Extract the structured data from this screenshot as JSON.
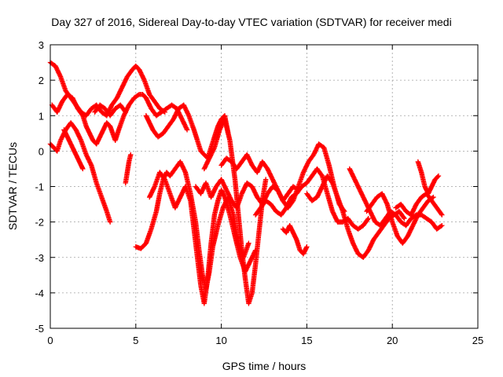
{
  "chart_data": {
    "type": "scatter",
    "title": "Day 327 of 2016, Sidereal Day-to-day VTEC variation (SDTVAR) for receiver medi",
    "xlabel": "GPS time / hours",
    "ylabel": "SDTVAR / TECUs",
    "xlim": [
      0,
      25
    ],
    "ylim": [
      -5,
      3
    ],
    "x_ticks": [
      "0",
      "5",
      "10",
      "15",
      "20",
      "25"
    ],
    "y_ticks": [
      "-5",
      "-4",
      "-3",
      "-2",
      "-1",
      "0",
      "1",
      "2",
      "3"
    ],
    "grid": true,
    "marker": "+",
    "color": "#ff0000",
    "series": [
      {
        "x": [
          0.0,
          0.3,
          0.6,
          0.9,
          1.2,
          1.5,
          1.8,
          2.1,
          2.4,
          2.7,
          3.0,
          3.3,
          3.6,
          3.9,
          4.2,
          4.5,
          4.8,
          5.0,
          5.2,
          5.5,
          5.8,
          6.1,
          6.4,
          6.7
        ],
        "y": [
          2.5,
          2.4,
          2.1,
          1.7,
          1.5,
          1.3,
          1.1,
          1.0,
          1.2,
          1.3,
          1.1,
          1.0,
          1.3,
          1.5,
          1.8,
          2.1,
          2.3,
          2.4,
          2.3,
          2.0,
          1.6,
          1.4,
          1.2,
          1.1
        ]
      },
      {
        "x": [
          0.0,
          0.2,
          0.4,
          0.6,
          0.9,
          1.2,
          1.5,
          1.8,
          2.1,
          2.4,
          2.7,
          3.0,
          3.3,
          3.5
        ],
        "y": [
          0.2,
          0.1,
          0.0,
          0.3,
          0.6,
          0.8,
          0.6,
          0.3,
          -0.1,
          -0.4,
          -0.9,
          -1.3,
          -1.7,
          -2.0
        ]
      },
      {
        "x": [
          0.1,
          0.4,
          0.7,
          1.0,
          1.3,
          1.6,
          1.9,
          2.1,
          2.3,
          2.5,
          2.7,
          2.9,
          3.1,
          3.3,
          3.5,
          3.8,
          4.0,
          4.3,
          4.6,
          4.9,
          5.2,
          5.4,
          5.6,
          5.9,
          6.2,
          6.5,
          6.8,
          7.1,
          7.4,
          7.7,
          8.0
        ],
        "y": [
          1.3,
          1.1,
          1.4,
          1.6,
          1.5,
          1.2,
          1.0,
          0.7,
          0.5,
          0.3,
          0.2,
          0.4,
          0.6,
          0.8,
          0.7,
          0.3,
          0.6,
          1.0,
          1.3,
          1.5,
          1.6,
          1.6,
          1.5,
          1.2,
          1.0,
          1.1,
          1.2,
          1.3,
          1.2,
          0.9,
          0.6
        ]
      },
      {
        "x": [
          0.8,
          1.0,
          1.2,
          1.4,
          1.6,
          1.8,
          1.9
        ],
        "y": [
          0.6,
          0.4,
          0.2,
          0.0,
          -0.2,
          -0.4,
          -0.5
        ]
      },
      {
        "x": [
          2.6,
          2.9,
          3.2,
          3.5,
          3.8,
          4.1,
          4.4
        ],
        "y": [
          1.1,
          1.3,
          1.2,
          1.0,
          1.2,
          1.3,
          1.1
        ]
      },
      {
        "x": [
          4.4,
          4.5,
          4.6,
          4.7
        ],
        "y": [
          -0.9,
          -0.6,
          -0.3,
          -0.1
        ]
      },
      {
        "x": [
          5.0,
          5.3,
          5.6,
          5.9,
          6.2,
          6.4,
          6.6,
          6.8,
          7.0,
          7.3,
          7.6,
          7.9,
          8.2,
          8.5,
          8.7,
          8.9,
          9.1,
          9.3,
          9.5,
          9.8,
          10.1,
          10.4,
          10.7,
          11.0,
          11.3,
          11.6
        ],
        "y": [
          -2.7,
          -2.75,
          -2.6,
          -2.2,
          -1.7,
          -1.2,
          -0.8,
          -0.6,
          -0.7,
          -0.5,
          -0.3,
          -0.6,
          -1.2,
          -2.0,
          -2.8,
          -3.5,
          -3.9,
          -3.4,
          -2.7,
          -2.1,
          -1.6,
          -1.3,
          -1.8,
          -2.6,
          -3.0,
          -2.6
        ]
      },
      {
        "x": [
          5.6,
          5.8,
          6.0,
          6.3,
          6.6,
          6.9,
          7.2,
          7.5,
          7.8,
          8.1,
          8.4,
          8.6,
          8.8,
          9.0,
          9.2,
          9.4,
          9.6,
          9.8,
          10.0,
          10.2,
          10.4
        ],
        "y": [
          1.0,
          0.8,
          0.6,
          0.4,
          0.5,
          0.7,
          0.9,
          1.2,
          1.3,
          1.0,
          0.6,
          0.3,
          0.0,
          -0.1,
          -0.2,
          0.1,
          0.4,
          0.7,
          0.9,
          1.0,
          0.5
        ]
      },
      {
        "x": [
          5.8,
          6.1,
          6.4,
          6.7,
          7.0,
          7.3,
          7.6,
          7.9,
          8.2,
          8.4,
          8.6,
          8.8,
          9.0,
          9.2,
          9.4,
          9.6,
          9.8,
          10.0,
          10.2,
          10.5,
          10.8,
          11.1,
          11.4,
          11.7,
          12.0
        ],
        "y": [
          -1.3,
          -1.0,
          -0.6,
          -0.8,
          -1.2,
          -1.6,
          -1.3,
          -1.0,
          -1.4,
          -2.2,
          -3.0,
          -3.8,
          -4.3,
          -3.6,
          -2.6,
          -1.8,
          -1.4,
          -1.1,
          -1.3,
          -1.8,
          -2.4,
          -3.0,
          -3.4,
          -3.1,
          -2.8
        ]
      },
      {
        "x": [
          8.5,
          8.8,
          9.1,
          9.4,
          9.7,
          10.0,
          10.3,
          10.6,
          10.9,
          11.2,
          11.5,
          11.8,
          12.1,
          12.4,
          12.7,
          13.0,
          13.3,
          13.6,
          13.9,
          14.2,
          14.5
        ],
        "y": [
          -1.0,
          -1.2,
          -0.9,
          -1.3,
          -1.0,
          -0.8,
          -1.1,
          -1.4,
          -1.6,
          -1.2,
          -0.9,
          -1.0,
          -1.3,
          -1.5,
          -1.2,
          -1.0,
          -1.1,
          -1.4,
          -1.2,
          -1.0,
          -1.1
        ]
      },
      {
        "x": [
          9.0,
          9.3,
          9.6,
          9.9,
          10.2,
          10.5,
          10.8,
          11.0,
          11.2,
          11.4,
          11.6,
          11.8,
          12.0,
          12.2,
          12.4,
          12.6
        ],
        "y": [
          -0.5,
          -0.2,
          0.1,
          0.6,
          0.9,
          0.3,
          -0.8,
          -1.8,
          -2.8,
          -3.6,
          -4.3,
          -4.0,
          -3.2,
          -2.3,
          -1.4,
          -0.8
        ]
      },
      {
        "x": [
          10.0,
          10.3,
          10.6,
          10.9,
          11.2,
          11.5,
          11.8,
          12.1,
          12.4,
          12.7,
          13.0,
          13.3,
          13.6,
          13.9,
          14.2,
          14.5,
          14.8,
          15.1,
          15.4,
          15.7,
          16.0,
          16.3,
          16.6,
          16.9,
          17.2
        ],
        "y": [
          -0.4,
          -0.2,
          -0.3,
          -0.5,
          -0.3,
          -0.1,
          -0.4,
          -0.6,
          -0.3,
          -0.5,
          -0.8,
          -1.1,
          -1.4,
          -1.6,
          -1.4,
          -1.0,
          -0.6,
          -0.3,
          -0.1,
          0.2,
          0.1,
          -0.4,
          -1.0,
          -1.5,
          -1.7
        ]
      },
      {
        "x": [
          12.0,
          12.3,
          12.6,
          12.9,
          13.2,
          13.5,
          13.8,
          14.1,
          14.4,
          14.7,
          15.0,
          15.3,
          15.6,
          15.9,
          16.2,
          16.5,
          16.8,
          17.1,
          17.4,
          17.7,
          18.0,
          18.3,
          18.6
        ],
        "y": [
          -1.8,
          -1.6,
          -1.4,
          -1.5,
          -1.7,
          -1.8,
          -1.6,
          -1.3,
          -1.2,
          -1.0,
          -0.9,
          -0.7,
          -0.5,
          -0.7,
          -1.2,
          -1.7,
          -2.0,
          -2.0,
          -1.9,
          -2.1,
          -2.2,
          -2.1,
          -1.9
        ]
      },
      {
        "x": [
          13.6,
          13.8,
          14.0,
          14.2,
          14.4,
          14.6,
          14.8,
          15.0
        ],
        "y": [
          -2.2,
          -2.3,
          -2.1,
          -2.3,
          -2.5,
          -2.8,
          -2.9,
          -2.7
        ]
      },
      {
        "x": [
          15.0,
          15.3,
          15.6,
          15.9,
          16.2,
          16.5,
          16.8,
          17.1,
          17.4,
          17.7,
          18.0,
          18.3,
          18.6,
          18.9,
          19.2,
          19.5,
          19.8,
          20.1,
          20.4,
          20.7
        ],
        "y": [
          -1.2,
          -1.4,
          -1.3,
          -1.0,
          -0.7,
          -0.9,
          -1.3,
          -1.7,
          -2.2,
          -2.6,
          -2.9,
          -3.0,
          -2.8,
          -2.5,
          -2.3,
          -2.1,
          -1.9,
          -1.8,
          -1.7,
          -1.9
        ]
      },
      {
        "x": [
          17.5,
          17.8,
          18.1,
          18.4,
          18.7,
          19.0,
          19.3,
          19.6,
          19.9,
          20.2,
          20.5,
          20.8,
          21.1,
          21.4,
          21.7,
          22.0,
          22.3,
          22.6,
          22.9
        ],
        "y": [
          -0.5,
          -0.8,
          -1.1,
          -1.4,
          -1.7,
          -2.0,
          -2.1,
          -1.9,
          -1.7,
          -1.8,
          -2.0,
          -2.1,
          -1.9,
          -1.8,
          -1.8,
          -1.9,
          -2.0,
          -2.2,
          -2.1
        ]
      },
      {
        "x": [
          18.5,
          18.8,
          19.1,
          19.4,
          19.7,
          20.0,
          20.3,
          20.6,
          20.9,
          21.2,
          21.5,
          21.8,
          22.1,
          22.4
        ],
        "y": [
          -1.7,
          -1.5,
          -1.3,
          -1.2,
          -1.5,
          -2.0,
          -2.4,
          -2.6,
          -2.4,
          -2.1,
          -1.8,
          -1.6,
          -1.4,
          -1.3
        ]
      },
      {
        "x": [
          20.2,
          20.5,
          20.8,
          21.1,
          21.4,
          21.7,
          22.0,
          22.3,
          22.6,
          22.9
        ],
        "y": [
          -1.6,
          -1.5,
          -1.7,
          -1.8,
          -1.5,
          -1.3,
          -1.2,
          -1.4,
          -1.6,
          -1.8
        ]
      },
      {
        "x": [
          21.5,
          21.7,
          21.9,
          22.1,
          22.3,
          22.5,
          22.7
        ],
        "y": [
          -0.3,
          -0.6,
          -1.0,
          -1.2,
          -1.0,
          -0.8,
          -0.7
        ]
      }
    ]
  }
}
